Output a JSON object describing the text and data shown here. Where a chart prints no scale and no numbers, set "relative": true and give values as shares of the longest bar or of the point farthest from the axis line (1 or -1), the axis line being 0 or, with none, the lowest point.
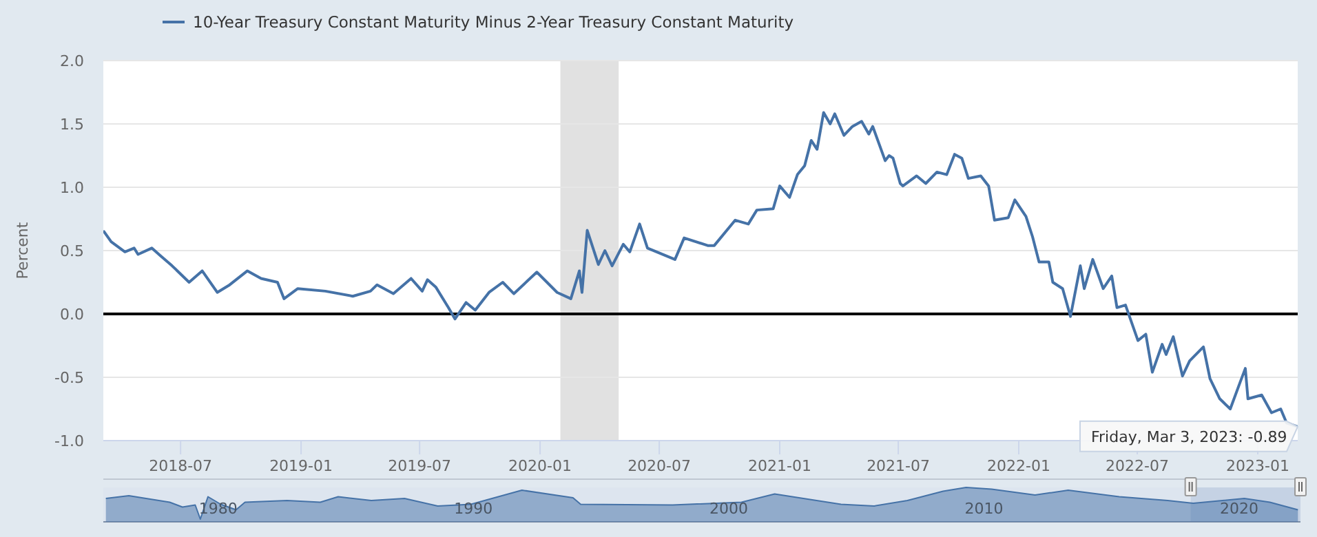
{
  "chart_data": [
    {
      "type": "line",
      "ylabel": "Percent",
      "legend": "top left",
      "grid": "y",
      "xlim": [
        "2018-03-05",
        "2023-03-03"
      ],
      "ylim": [
        -1,
        2
      ],
      "xticks": [
        "2018-07",
        "2019-01",
        "2019-07",
        "2020-01",
        "2020-07",
        "2021-01",
        "2021-07",
        "2022-01",
        "2022-07",
        "2023-01"
      ],
      "yticks": [
        {
          "value": -1,
          "label": "-1.0"
        },
        -0.5,
        {
          "value": 0,
          "label": "0.0"
        },
        0.5,
        {
          "value": 1,
          "label": "1.0"
        },
        1.5,
        {
          "value": 2,
          "label": "2.0"
        }
      ],
      "ref_lines": [
        {
          "axis": "y",
          "value": 0,
          "color": "#000000"
        }
      ],
      "bands": [
        {
          "axis": "x",
          "from": "2020-02-01",
          "to": "2020-04-30",
          "color": "#e1e1e1"
        }
      ],
      "annotations": [
        {
          "text": "Friday, Mar 3, 2023: -0.89",
          "x": "2023-03-03",
          "y": -0.89
        }
      ],
      "series": [
        {
          "name": "10-Year Treasury Constant Maturity Minus 2-Year Treasury Constant Maturity",
          "color": "#4572a7",
          "x": [
            "2018-03-06",
            "2018-03-17",
            "2018-04-07",
            "2018-04-21",
            "2018-04-27",
            "2018-05-18",
            "2018-05-31",
            "2018-06-18",
            "2018-07-14",
            "2018-08-03",
            "2018-08-26",
            "2018-09-14",
            "2018-10-11",
            "2018-11-01",
            "2018-11-26",
            "2018-12-06",
            "2018-12-27",
            "2019-02-07",
            "2019-03-21",
            "2019-04-17",
            "2019-04-27",
            "2019-05-22",
            "2019-06-18",
            "2019-07-05",
            "2019-07-13",
            "2019-07-26",
            "2019-08-14",
            "2019-08-24",
            "2019-09-10",
            "2019-09-24",
            "2019-10-15",
            "2019-11-05",
            "2019-11-22",
            "2019-12-27",
            "2020-01-27",
            "2020-02-17",
            "2020-03-01",
            "2020-03-05",
            "2020-03-13",
            "2020-03-30",
            "2020-04-09",
            "2020-04-20",
            "2020-05-07",
            "2020-05-17",
            "2020-06-01",
            "2020-06-13",
            "2020-07-25",
            "2020-08-08",
            "2020-09-13",
            "2020-09-23",
            "2020-10-25",
            "2020-11-14",
            "2020-11-27",
            "2020-12-22",
            "2021-01-01",
            "2021-01-16",
            "2021-01-28",
            "2021-02-08",
            "2021-02-18",
            "2021-02-27",
            "2021-03-09",
            "2021-03-19",
            "2021-03-26",
            "2021-04-09",
            "2021-04-22",
            "2021-05-06",
            "2021-05-17",
            "2021-05-23",
            "2021-06-11",
            "2021-06-17",
            "2021-06-23",
            "2021-07-04",
            "2021-07-08",
            "2021-07-29",
            "2021-08-12",
            "2021-08-29",
            "2021-09-13",
            "2021-09-25",
            "2021-10-06",
            "2021-10-16",
            "2021-11-04",
            "2021-11-16",
            "2021-11-25",
            "2021-12-16",
            "2021-12-26",
            "2022-01-12",
            "2022-01-22",
            "2022-02-01",
            "2022-02-16",
            "2022-02-22",
            "2022-03-09",
            "2022-03-21",
            "2022-04-05",
            "2022-04-11",
            "2022-04-24",
            "2022-05-10",
            "2022-05-23",
            "2022-05-31",
            "2022-06-13",
            "2022-07-02",
            "2022-07-14",
            "2022-07-24",
            "2022-08-08",
            "2022-08-14",
            "2022-08-25",
            "2022-09-08",
            "2022-09-19",
            "2022-10-10",
            "2022-10-20",
            "2022-11-04",
            "2022-11-20",
            "2022-12-05",
            "2022-12-13",
            "2022-12-17",
            "2023-01-07",
            "2023-01-22",
            "2023-02-05",
            "2023-02-14",
            "2023-03-03"
          ],
          "values": [
            0.65,
            0.57,
            0.49,
            0.52,
            0.47,
            0.52,
            0.46,
            0.38,
            0.25,
            0.34,
            0.17,
            0.23,
            0.34,
            0.28,
            0.25,
            0.12,
            0.2,
            0.18,
            0.14,
            0.18,
            0.23,
            0.16,
            0.28,
            0.18,
            0.27,
            0.21,
            0.05,
            -0.04,
            0.09,
            0.03,
            0.17,
            0.25,
            0.16,
            0.33,
            0.17,
            0.12,
            0.34,
            0.17,
            0.66,
            0.39,
            0.5,
            0.38,
            0.55,
            0.49,
            0.71,
            0.52,
            0.43,
            0.6,
            0.54,
            0.54,
            0.74,
            0.71,
            0.82,
            0.83,
            1.01,
            0.92,
            1.1,
            1.17,
            1.37,
            1.3,
            1.59,
            1.5,
            1.58,
            1.41,
            1.48,
            1.52,
            1.42,
            1.48,
            1.21,
            1.25,
            1.23,
            1.03,
            1.01,
            1.09,
            1.03,
            1.12,
            1.1,
            1.26,
            1.23,
            1.07,
            1.09,
            1.01,
            0.74,
            0.76,
            0.9,
            0.77,
            0.61,
            0.41,
            0.41,
            0.25,
            0.2,
            -0.02,
            0.38,
            0.2,
            0.43,
            0.2,
            0.3,
            0.05,
            0.07,
            -0.21,
            -0.16,
            -0.46,
            -0.24,
            -0.32,
            -0.18,
            -0.49,
            -0.37,
            -0.26,
            -0.51,
            -0.67,
            -0.75,
            -0.54,
            -0.43,
            -0.67,
            -0.64,
            -0.78,
            -0.75,
            -0.86,
            -0.89
          ]
        }
      ]
    },
    {
      "type": "area",
      "relative": true,
      "xlim": [
        1975.5,
        2022.4
      ],
      "xticks": [
        1980,
        1990,
        2000,
        2010,
        2020
      ],
      "bands": [
        {
          "axis": "x",
          "from": 2018.1,
          "to": 2022.4,
          "color": "#c5d2e4"
        }
      ],
      "series": [
        {
          "color": "#4572a7",
          "x": [
            1975.6,
            1976.5,
            1978.1,
            1978.6,
            1979.1,
            1979.3,
            1979.6,
            1980.1,
            1980.7,
            1981.05,
            1981.7,
            1982.7,
            1984.0,
            1984.7,
            1986.0,
            1987.3,
            1988.6,
            1989.9,
            1991.9,
            1993.9,
            1994.2,
            1997.8,
            2000.5,
            2001.8,
            2004.4,
            2005.7,
            2007.0,
            2008.4,
            2009.3,
            2010.3,
            2012.0,
            2013.3,
            2015.3,
            2017.2,
            2018.2,
            2020.2,
            2021.2,
            2022.3
          ],
          "values": [
            0.68,
            0.76,
            0.57,
            0.43,
            0.49,
            0.08,
            0.73,
            0.51,
            0.35,
            0.57,
            0.59,
            0.62,
            0.57,
            0.73,
            0.62,
            0.68,
            0.46,
            0.51,
            0.92,
            0.7,
            0.51,
            0.49,
            0.57,
            0.81,
            0.51,
            0.46,
            0.62,
            0.89,
            1,
            0.95,
            0.78,
            0.92,
            0.73,
            0.62,
            0.54,
            0.68,
            0.57,
            0.35
          ]
        }
      ]
    }
  ]
}
